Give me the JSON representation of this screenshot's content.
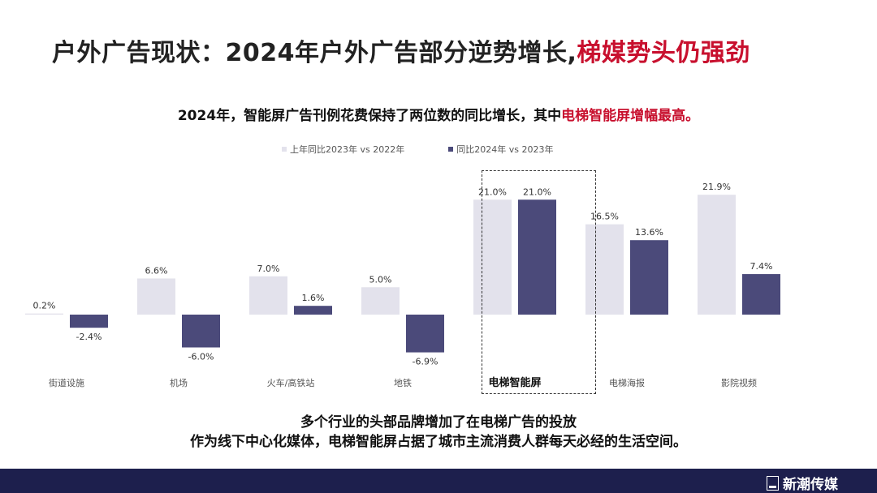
{
  "title": {
    "main": "户外广告现状：2024年户外广告部分逆势增长,",
    "highlight": "梯媒势头仍强劲"
  },
  "subtitle": {
    "main": "2024年，智能屏广告刊例花费保持了两位数的同比增长，其中",
    "highlight": "电梯智能屏增幅最高。"
  },
  "bottom_text": {
    "line1": "多个行业的头部品牌增加了在电梯广告的投放",
    "line2": "作为线下中心化媒体，电梯智能屏占据了城市主流消费人群每天必经的生活空间。"
  },
  "brand": {
    "name": "新潮传媒",
    "logo_icon": "xinchao-logo-icon"
  },
  "colors": {
    "series_prev": "#e3e2ec",
    "series_curr": "#4b4a7a",
    "title_highlight": "#c8102e",
    "footer_bg": "#1d1f4d"
  },
  "chart_data": {
    "type": "bar",
    "categories": [
      "街道设施",
      "机场",
      "火车/高铁站",
      "地铁",
      "电梯智能屏",
      "电梯海报",
      "影院视频"
    ],
    "series": [
      {
        "name": "上年同比2023年 vs 2022年",
        "values": [
          0.2,
          6.6,
          7.0,
          5.0,
          21.0,
          16.5,
          21.9
        ],
        "labels": [
          "0.2%",
          "6.6%",
          "7.0%",
          "5.0%",
          "21.0%",
          "16.5%",
          "21.9%"
        ]
      },
      {
        "name": "同比2024年 vs 2023年",
        "values": [
          -2.4,
          -6.0,
          1.6,
          -6.9,
          21.0,
          13.6,
          7.4
        ],
        "labels": [
          "-2.4%",
          "-6.0%",
          "1.6%",
          "-6.9%",
          "21.0%",
          "13.6%",
          "7.4%"
        ]
      }
    ],
    "highlighted_category": "电梯智能屏",
    "unit": "%",
    "ylim": [
      -6.9,
      21.9
    ],
    "grid": false,
    "legend_position": "top-center"
  }
}
